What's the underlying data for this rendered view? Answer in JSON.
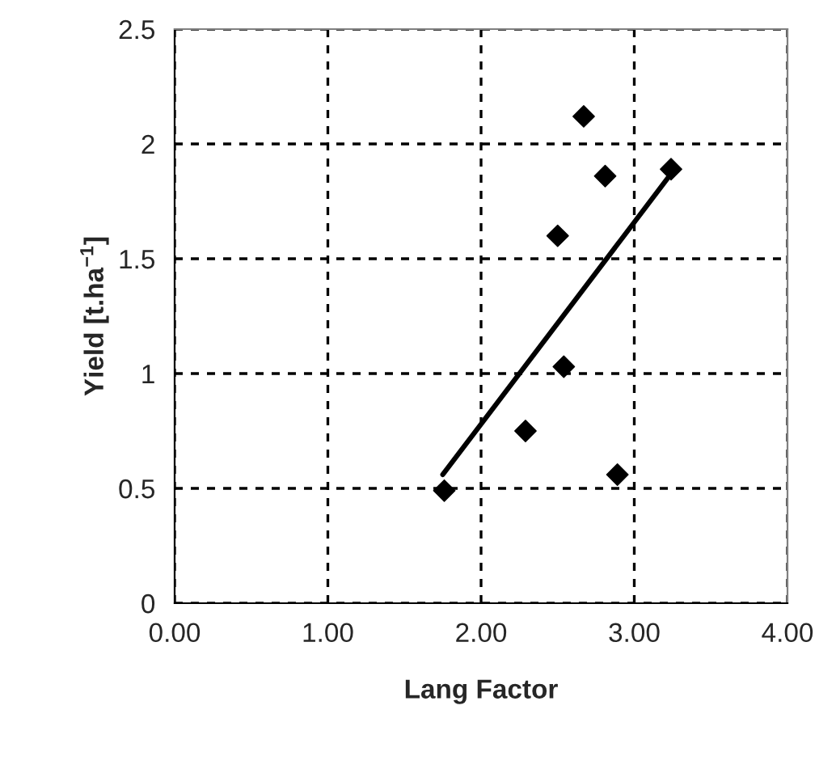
{
  "chart_data": {
    "type": "scatter",
    "xlabel": "Lang Factor",
    "ylabel": "Yield [t.ha$^{−1}$]",
    "xlim": [
      0,
      4
    ],
    "ylim": [
      0,
      2.5
    ],
    "xticks": [
      {
        "value": 0,
        "label": "0.00"
      },
      {
        "value": 1,
        "label": "1.00"
      },
      {
        "value": 2,
        "label": "2.00"
      },
      {
        "value": 3,
        "label": "3.00"
      },
      {
        "value": 4,
        "label": "4.00"
      }
    ],
    "yticks": [
      0,
      0.5,
      1,
      1.5,
      2,
      2.5
    ],
    "grid": true,
    "legend": false,
    "series": [
      {
        "color": "#000000",
        "marker": "diamond",
        "x": [
          1.76,
          2.29,
          2.54,
          2.89,
          2.5,
          2.81,
          2.67,
          3.24
        ],
        "values": [
          0.49,
          0.75,
          1.03,
          0.56,
          1.6,
          1.86,
          2.12,
          1.89
        ]
      },
      {
        "type": "line",
        "color": "#000000",
        "marker": "none",
        "line_style": "solid",
        "x": [
          1.75,
          3.24
        ],
        "values": [
          0.56,
          1.87
        ]
      }
    ]
  }
}
